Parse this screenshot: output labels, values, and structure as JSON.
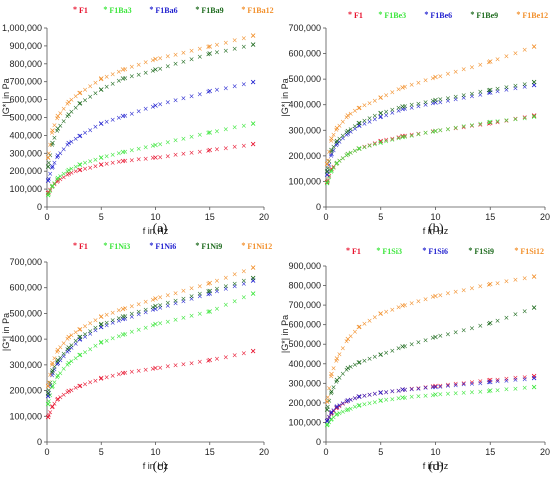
{
  "colors": {
    "red": "#e8112d",
    "green": "#3de63d",
    "blue": "#1f1fcf",
    "darkgreen": "#1e6b1e",
    "orange": "#f2902c"
  },
  "chart_data": [
    {
      "type": "scatter",
      "caption": "(a)",
      "xlabel": "f in Hz",
      "ylabel": "|G*| in Pa",
      "xlim": [
        0,
        20
      ],
      "ylim": [
        0,
        1000000
      ],
      "xticks": [
        0,
        5,
        10,
        15,
        20
      ],
      "yticks": [
        0,
        100000,
        200000,
        300000,
        400000,
        500000,
        600000,
        700000,
        800000,
        900000,
        1000000
      ],
      "ytick_labels": [
        "0",
        "100,000",
        "200,000",
        "300,000",
        "400,000",
        "500,000",
        "600,000",
        "700,000",
        "800,000",
        "900,000",
        "1,000,000"
      ],
      "legend_position": "top",
      "series": [
        {
          "name": "F1",
          "color": "#e8112d",
          "x": [
            0.1,
            0.5,
            1,
            2,
            3,
            5,
            7,
            10,
            15,
            19
          ],
          "y": [
            80000,
            120000,
            150000,
            190000,
            210000,
            240000,
            260000,
            280000,
            320000,
            355000
          ]
        },
        {
          "name": "F1Ba3",
          "color": "#3de63d",
          "x": [
            0.1,
            0.5,
            1,
            2,
            3,
            5,
            7,
            10,
            15,
            19
          ],
          "y": [
            70000,
            120000,
            165000,
            210000,
            240000,
            280000,
            310000,
            350000,
            420000,
            470000
          ]
        },
        {
          "name": "F1Ba6",
          "color": "#1f1fcf",
          "x": [
            0.1,
            0.5,
            1,
            2,
            3,
            5,
            7,
            10,
            15,
            19
          ],
          "y": [
            150000,
            230000,
            290000,
            360000,
            400000,
            470000,
            510000,
            570000,
            650000,
            700000
          ]
        },
        {
          "name": "F1Ba9",
          "color": "#1e6b1e",
          "x": [
            0.1,
            0.5,
            1,
            2,
            3,
            5,
            7,
            10,
            15,
            19
          ],
          "y": [
            230000,
            360000,
            440000,
            520000,
            580000,
            660000,
            720000,
            770000,
            860000,
            910000
          ]
        },
        {
          "name": "F1Ba12",
          "color": "#f2902c",
          "x": [
            0.1,
            0.5,
            1,
            2,
            3,
            5,
            7,
            10,
            15,
            19
          ],
          "y": [
            280000,
            430000,
            510000,
            590000,
            640000,
            720000,
            770000,
            830000,
            900000,
            960000
          ]
        }
      ]
    },
    {
      "type": "scatter",
      "caption": "(b)",
      "xlabel": "f in Hz",
      "ylabel": "|G*| in Pa",
      "xlim": [
        0,
        20
      ],
      "ylim": [
        0,
        700000
      ],
      "xticks": [
        0,
        5,
        10,
        15,
        20
      ],
      "yticks": [
        0,
        100000,
        200000,
        300000,
        400000,
        500000,
        600000,
        700000
      ],
      "ytick_labels": [
        "0",
        "100,000",
        "200,000",
        "300,000",
        "400,000",
        "500,000",
        "600,000",
        "700,000"
      ],
      "legend_position": "top",
      "series": [
        {
          "name": "F1",
          "color": "#e8112d",
          "x": [
            0.1,
            0.5,
            1,
            2,
            3,
            5,
            7,
            10,
            15,
            19
          ],
          "y": [
            100000,
            150000,
            175000,
            210000,
            230000,
            260000,
            280000,
            300000,
            330000,
            360000
          ]
        },
        {
          "name": "F1Be3",
          "color": "#3de63d",
          "x": [
            0.1,
            0.5,
            1,
            2,
            3,
            5,
            7,
            10,
            15,
            19
          ],
          "y": [
            95000,
            145000,
            175000,
            210000,
            230000,
            255000,
            275000,
            300000,
            335000,
            355000
          ]
        },
        {
          "name": "F1Be6",
          "color": "#1f1fcf",
          "x": [
            0.1,
            0.5,
            1,
            2,
            3,
            5,
            7,
            10,
            15,
            19
          ],
          "y": [
            130000,
            210000,
            250000,
            290000,
            320000,
            355000,
            385000,
            410000,
            450000,
            480000
          ]
        },
        {
          "name": "F1Be9",
          "color": "#1e6b1e",
          "x": [
            0.1,
            0.5,
            1,
            2,
            3,
            5,
            7,
            10,
            15,
            19
          ],
          "y": [
            140000,
            225000,
            260000,
            300000,
            330000,
            370000,
            395000,
            420000,
            460000,
            490000
          ]
        },
        {
          "name": "F1Be12",
          "color": "#f2902c",
          "x": [
            0.1,
            0.5,
            1,
            2,
            3,
            5,
            7,
            10,
            15,
            19
          ],
          "y": [
            170000,
            270000,
            310000,
            360000,
            390000,
            430000,
            470000,
            510000,
            570000,
            630000
          ]
        }
      ]
    },
    {
      "type": "scatter",
      "caption": "(c)",
      "xlabel": "f in Hz",
      "ylabel": "|G*| in Pa",
      "xlim": [
        0,
        20
      ],
      "ylim": [
        0,
        700000
      ],
      "xticks": [
        0,
        5,
        10,
        15,
        20
      ],
      "yticks": [
        0,
        100000,
        200000,
        300000,
        400000,
        500000,
        600000,
        700000
      ],
      "ytick_labels": [
        "0",
        "100,000",
        "200,000",
        "300,000",
        "400,000",
        "500,000",
        "600,000",
        "700,000"
      ],
      "legend_position": "top",
      "series": [
        {
          "name": "F1",
          "color": "#e8112d",
          "x": [
            0.1,
            0.5,
            1,
            2,
            3,
            5,
            7,
            10,
            15,
            19
          ],
          "y": [
            100000,
            140000,
            170000,
            200000,
            220000,
            250000,
            270000,
            290000,
            320000,
            355000
          ]
        },
        {
          "name": "F1Ni3",
          "color": "#3de63d",
          "x": [
            0.1,
            0.5,
            1,
            2,
            3,
            5,
            7,
            10,
            15,
            19
          ],
          "y": [
            150000,
            220000,
            260000,
            310000,
            340000,
            390000,
            420000,
            460000,
            510000,
            580000
          ]
        },
        {
          "name": "F1Ni6",
          "color": "#1f1fcf",
          "x": [
            0.1,
            0.5,
            1,
            2,
            3,
            5,
            7,
            10,
            15,
            19
          ],
          "y": [
            180000,
            270000,
            310000,
            360000,
            400000,
            450000,
            480000,
            520000,
            580000,
            630000
          ]
        },
        {
          "name": "F1Ni9",
          "color": "#1e6b1e",
          "x": [
            0.1,
            0.5,
            1,
            2,
            3,
            5,
            7,
            10,
            15,
            19
          ],
          "y": [
            190000,
            280000,
            320000,
            370000,
            410000,
            460000,
            490000,
            530000,
            590000,
            640000
          ]
        },
        {
          "name": "F1Ni12",
          "color": "#f2902c",
          "x": [
            0.1,
            0.5,
            1,
            2,
            3,
            5,
            7,
            10,
            15,
            19
          ],
          "y": [
            220000,
            310000,
            360000,
            410000,
            440000,
            490000,
            520000,
            560000,
            620000,
            680000
          ]
        }
      ]
    },
    {
      "type": "scatter",
      "caption": "(d)",
      "xlabel": "f in Hz",
      "ylabel": "|G*| in Pa",
      "xlim": [
        0,
        20
      ],
      "ylim": [
        0,
        900000
      ],
      "xticks": [
        0,
        5,
        10,
        15,
        20
      ],
      "yticks": [
        0,
        100000,
        200000,
        300000,
        400000,
        500000,
        600000,
        700000,
        800000,
        900000
      ],
      "ytick_labels": [
        "0",
        "100,000",
        "200,000",
        "300,000",
        "400,000",
        "500,000",
        "600,000",
        "700,000",
        "800,000",
        "900,000"
      ],
      "legend_position": "top",
      "series": [
        {
          "name": "F1",
          "color": "#e8112d",
          "x": [
            0.1,
            0.5,
            1,
            2,
            3,
            5,
            7,
            10,
            15,
            19
          ],
          "y": [
            110000,
            150000,
            180000,
            215000,
            235000,
            255000,
            270000,
            290000,
            320000,
            340000
          ]
        },
        {
          "name": "F1Si3",
          "color": "#3de63d",
          "x": [
            0.1,
            0.5,
            1,
            2,
            3,
            5,
            7,
            10,
            15,
            19
          ],
          "y": [
            90000,
            120000,
            145000,
            170000,
            190000,
            215000,
            230000,
            245000,
            265000,
            285000
          ]
        },
        {
          "name": "F1Si6",
          "color": "#1f1fcf",
          "x": [
            0.1,
            0.5,
            1,
            2,
            3,
            5,
            7,
            10,
            15,
            19
          ],
          "y": [
            110000,
            155000,
            185000,
            215000,
            235000,
            255000,
            270000,
            285000,
            310000,
            330000
          ]
        },
        {
          "name": "F1Si9",
          "color": "#1e6b1e",
          "x": [
            0.1,
            0.5,
            1,
            2,
            3,
            5,
            7,
            10,
            15,
            19
          ],
          "y": [
            170000,
            260000,
            320000,
            380000,
            410000,
            450000,
            490000,
            540000,
            610000,
            690000
          ]
        },
        {
          "name": "F1Si12",
          "color": "#f2902c",
          "x": [
            0.1,
            0.5,
            1,
            2,
            3,
            5,
            7,
            10,
            15,
            19
          ],
          "y": [
            210000,
            350000,
            430000,
            530000,
            590000,
            660000,
            700000,
            750000,
            810000,
            850000
          ]
        }
      ]
    }
  ]
}
